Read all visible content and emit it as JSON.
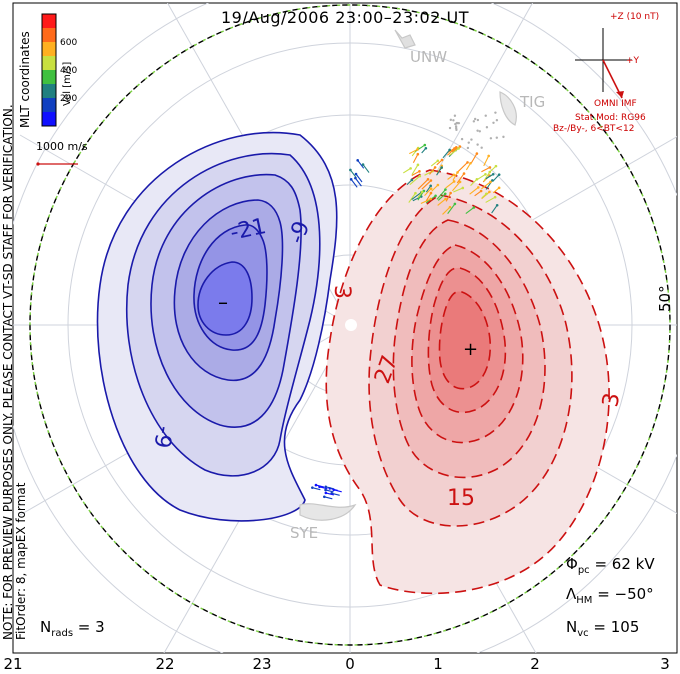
{
  "title": "19/Aug/2006 23:00–23:02 UT",
  "side_note_line1": "NOTE: FOR PREVIEW PURPOSES ONLY. PLEASE CONTACT VT-SD STAFF FOR VERIFICATION.",
  "side_note_line2": "FitOrder: 8,  mapEX format",
  "mlt_label": "MLT coordinates",
  "colorbar": {
    "label": "Vel [m/s]",
    "ticks": [
      "600",
      "400",
      "200"
    ],
    "colors": [
      "#ff1a1a",
      "#ff6a1a",
      "#ffb020",
      "#c8e040",
      "#40c040",
      "#208080",
      "#1040c0",
      "#1010ff"
    ]
  },
  "reference_vector": "1000 m/s",
  "imf": {
    "bz_label": "+Z (10 nT)",
    "by_label": "+Y",
    "source": "OMNI IMF",
    "model": "Stat Mod: RG96",
    "condition": "Bz-/By-, 6<BT<12"
  },
  "stations": [
    "UNW",
    "TIG",
    "SYE"
  ],
  "latitude_label": "50°",
  "contour_labels": [
    "-21",
    "-9",
    "-9",
    "3",
    "27",
    "15",
    "3"
  ],
  "markers": {
    "min": "–",
    "max": "+"
  },
  "stats": {
    "phi_pc": "62 kV",
    "lambda_hm": "−50°",
    "n_vc": "105",
    "n_rads": "3"
  },
  "x_axis_ticks": [
    "21",
    "22",
    "23",
    "0",
    "1",
    "2",
    "3"
  ],
  "accent_colors": {
    "negative": "#1a1aaa",
    "positive": "#cc1111"
  }
}
